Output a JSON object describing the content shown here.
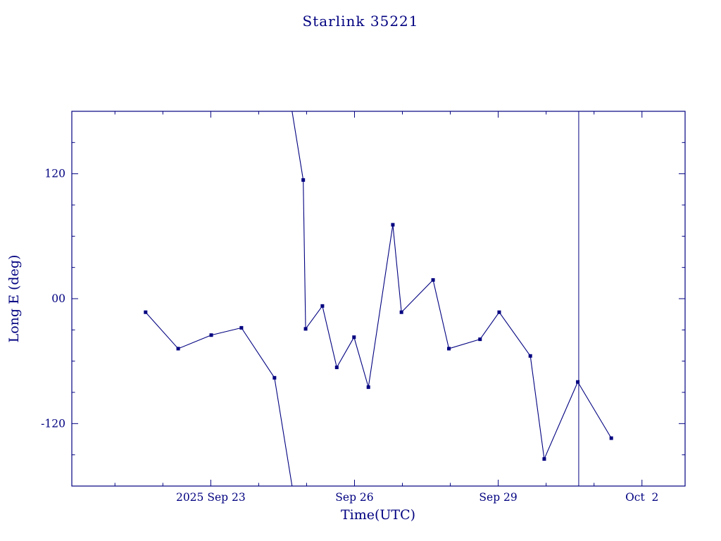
{
  "chart_data": {
    "type": "line",
    "title": "Starlink 35221",
    "xlabel": "Time(UTC)",
    "ylabel": "Long E (deg)",
    "color": "#000080",
    "background": "#ffffff",
    "marker": "filled-square",
    "legend": "none",
    "grid": false,
    "x_unit": "day of 2025 September (UTC), 32 = Oct 2",
    "xlim": [
      20.1,
      32.9
    ],
    "ylim": [
      -180,
      180
    ],
    "x_major_ticks": [
      {
        "x": 23,
        "label": "2025 Sep 23"
      },
      {
        "x": 26,
        "label": "Sep 26"
      },
      {
        "x": 29,
        "label": "Sep 29"
      },
      {
        "x": 32,
        "label": "Oct  2"
      }
    ],
    "x_minor_tick_interval": 1,
    "y_major_ticks": [
      {
        "y": 120,
        "label": "120"
      },
      {
        "y": 0,
        "label": "00"
      },
      {
        "y": -120,
        "label": "-120"
      }
    ],
    "y_minor_tick_interval": 30,
    "wrap_degrees": 360,
    "vertical_line_x": 30.68,
    "series": [
      {
        "name": "Long E (deg)",
        "points": [
          [
            21.64,
            -13
          ],
          [
            22.32,
            -48
          ],
          [
            23.01,
            -35
          ],
          [
            23.64,
            -28
          ],
          [
            24.33,
            -76
          ],
          [
            24.93,
            114
          ],
          [
            24.98,
            -29
          ],
          [
            25.33,
            -7
          ],
          [
            25.63,
            -66
          ],
          [
            25.99,
            -37
          ],
          [
            26.29,
            -85
          ],
          [
            26.8,
            71
          ],
          [
            26.98,
            -13
          ],
          [
            27.64,
            18
          ],
          [
            27.97,
            -48
          ],
          [
            28.62,
            -39
          ],
          [
            29.02,
            -13
          ],
          [
            29.67,
            -55
          ],
          [
            29.96,
            -154
          ],
          [
            30.66,
            -80
          ],
          [
            31.36,
            -134
          ]
        ]
      }
    ]
  }
}
